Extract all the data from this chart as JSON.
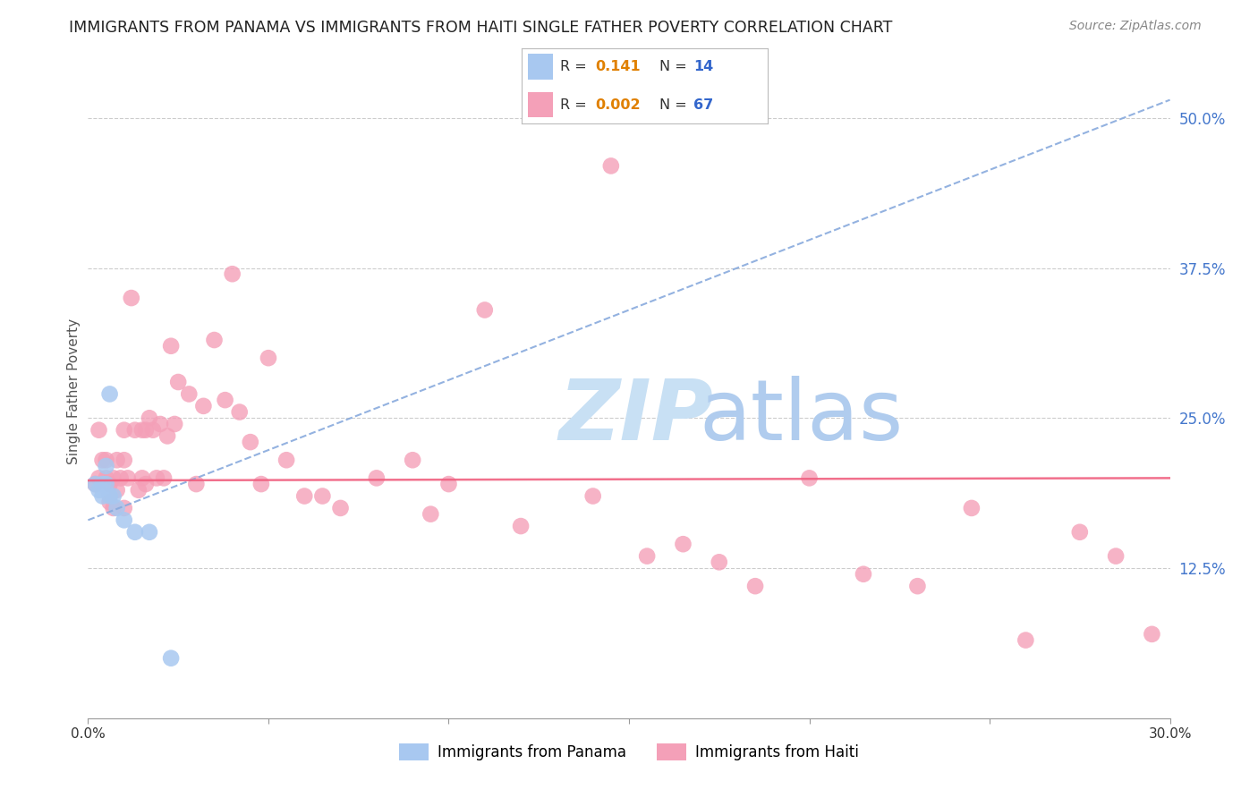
{
  "title": "IMMIGRANTS FROM PANAMA VS IMMIGRANTS FROM HAITI SINGLE FATHER POVERTY CORRELATION CHART",
  "source": "Source: ZipAtlas.com",
  "ylabel": "Single Father Poverty",
  "ytick_labels": [
    "50.0%",
    "37.5%",
    "25.0%",
    "12.5%"
  ],
  "ytick_values": [
    0.5,
    0.375,
    0.25,
    0.125
  ],
  "xmin": 0.0,
  "xmax": 0.3,
  "ymin": 0.0,
  "ymax": 0.545,
  "panama_color": "#a8c8f0",
  "haiti_color": "#f4a0b8",
  "trendline_panama_color": "#88aadd",
  "trendline_haiti_color": "#f06080",
  "watermark_zip_color": "#c8e0f4",
  "watermark_atlas_color": "#b0ccee",
  "background_color": "#ffffff",
  "grid_color": "#cccccc",
  "panama_trend_x0": 0.0,
  "panama_trend_y0": 0.165,
  "panama_trend_x1": 0.3,
  "panama_trend_y1": 0.515,
  "haiti_trend_x0": 0.0,
  "haiti_trend_y0": 0.198,
  "haiti_trend_x1": 0.3,
  "haiti_trend_y1": 0.2,
  "panama_scatter_x": [
    0.002,
    0.003,
    0.004,
    0.004,
    0.005,
    0.005,
    0.006,
    0.006,
    0.007,
    0.008,
    0.01,
    0.013,
    0.017,
    0.023
  ],
  "panama_scatter_y": [
    0.195,
    0.19,
    0.195,
    0.185,
    0.21,
    0.195,
    0.27,
    0.185,
    0.185,
    0.175,
    0.165,
    0.155,
    0.155,
    0.05
  ],
  "haiti_scatter_x": [
    0.002,
    0.003,
    0.003,
    0.004,
    0.005,
    0.005,
    0.006,
    0.006,
    0.007,
    0.007,
    0.008,
    0.008,
    0.009,
    0.01,
    0.01,
    0.01,
    0.011,
    0.012,
    0.013,
    0.014,
    0.015,
    0.015,
    0.016,
    0.016,
    0.017,
    0.018,
    0.019,
    0.02,
    0.021,
    0.022,
    0.023,
    0.024,
    0.025,
    0.028,
    0.03,
    0.032,
    0.035,
    0.038,
    0.04,
    0.042,
    0.045,
    0.048,
    0.05,
    0.055,
    0.06,
    0.065,
    0.07,
    0.08,
    0.09,
    0.095,
    0.1,
    0.11,
    0.12,
    0.14,
    0.145,
    0.155,
    0.165,
    0.175,
    0.185,
    0.2,
    0.215,
    0.23,
    0.245,
    0.26,
    0.275,
    0.285,
    0.295
  ],
  "haiti_scatter_y": [
    0.195,
    0.24,
    0.2,
    0.215,
    0.2,
    0.215,
    0.18,
    0.195,
    0.2,
    0.175,
    0.19,
    0.215,
    0.2,
    0.175,
    0.215,
    0.24,
    0.2,
    0.35,
    0.24,
    0.19,
    0.2,
    0.24,
    0.24,
    0.195,
    0.25,
    0.24,
    0.2,
    0.245,
    0.2,
    0.235,
    0.31,
    0.245,
    0.28,
    0.27,
    0.195,
    0.26,
    0.315,
    0.265,
    0.37,
    0.255,
    0.23,
    0.195,
    0.3,
    0.215,
    0.185,
    0.185,
    0.175,
    0.2,
    0.215,
    0.17,
    0.195,
    0.34,
    0.16,
    0.185,
    0.46,
    0.135,
    0.145,
    0.13,
    0.11,
    0.2,
    0.12,
    0.11,
    0.175,
    0.065,
    0.155,
    0.135,
    0.07
  ],
  "legend_R1": "0.141",
  "legend_N1": "14",
  "legend_R2": "0.002",
  "legend_N2": "67"
}
